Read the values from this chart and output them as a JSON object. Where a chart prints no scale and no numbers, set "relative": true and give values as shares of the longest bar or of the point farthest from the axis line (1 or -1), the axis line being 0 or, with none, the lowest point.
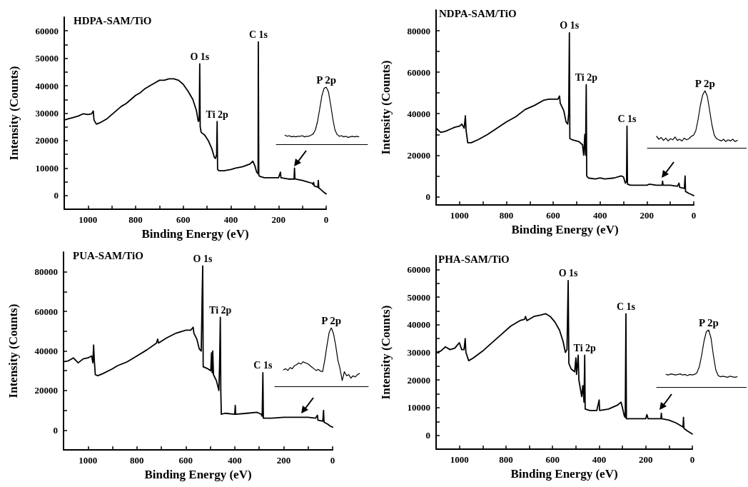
{
  "chart_data": [
    {
      "type": "line",
      "title": "HDPA-SAM/TiO",
      "xlabel": "Binding Energy (eV)",
      "ylabel": "Intensity (Counts)",
      "xlim": [
        1100,
        0
      ],
      "xticks": [
        1000,
        {
          "value": 900,
          "label": null
        },
        800,
        {
          "value": 700,
          "label": null
        },
        600,
        {
          "value": 500,
          "label": null
        },
        400,
        {
          "value": 300,
          "label": null
        },
        200,
        {
          "value": 100,
          "label": null
        },
        0
      ],
      "ylim": [
        -5000,
        65000
      ],
      "yticks": [
        0,
        {
          "value": 5000,
          "label": null
        },
        10000,
        {
          "value": 15000,
          "label": null
        },
        20000,
        {
          "value": 25000,
          "label": null
        },
        30000,
        {
          "value": 35000,
          "label": null
        },
        40000,
        {
          "value": 45000,
          "label": null
        },
        50000,
        {
          "value": 55000,
          "label": null
        },
        60000
      ],
      "annotations": [
        {
          "text": "O 1s",
          "x": 531,
          "y": 48000
        },
        {
          "text": "Ti 2p",
          "x": 458,
          "y": 27000
        },
        {
          "text": "C 1s",
          "x": 285,
          "y": 56000
        }
      ],
      "x": [
        1100,
        1080,
        1060,
        1040,
        1020,
        1000,
        985,
        978,
        975,
        965,
        950,
        920,
        900,
        880,
        860,
        840,
        820,
        800,
        780,
        760,
        740,
        720,
        700,
        680,
        660,
        640,
        620,
        600,
        580,
        560,
        545,
        537,
        533,
        531,
        529,
        525,
        510,
        495,
        480,
        470,
        465,
        460,
        458,
        456,
        450,
        430,
        400,
        380,
        350,
        320,
        308,
        300,
        292,
        286,
        285,
        283,
        280,
        260,
        220,
        200,
        192,
        190,
        160,
        135,
        133,
        131,
        100,
        80,
        60,
        55,
        53,
        50,
        35,
        33,
        31,
        20,
        10,
        0
      ],
      "series": [
        {
          "color": "#000000",
          "values": [
            27500,
            28000,
            28500,
            29000,
            29800,
            29500,
            29800,
            30800,
            27500,
            26000,
            26500,
            28000,
            29500,
            31000,
            32500,
            33500,
            35000,
            36500,
            37500,
            39000,
            40000,
            41000,
            42000,
            42000,
            42500,
            42500,
            42000,
            40500,
            38000,
            35000,
            31000,
            27000,
            27500,
            48000,
            25000,
            23000,
            22000,
            20000,
            17000,
            14000,
            13500,
            15000,
            27000,
            9500,
            9000,
            9000,
            9500,
            10000,
            10500,
            11500,
            12500,
            11000,
            8500,
            8000,
            56000,
            7500,
            7000,
            6500,
            6500,
            6500,
            8500,
            6500,
            6000,
            6000,
            10000,
            6000,
            5500,
            5000,
            4500,
            4000,
            4800,
            3500,
            3000,
            5500,
            2800,
            2000,
            1200,
            600
          ]
        }
      ]
    },
    {
      "type": "line",
      "relative": true,
      "tick_labels": false,
      "annotations": [
        "P 2p"
      ],
      "categories": [
        null,
        null,
        null,
        null,
        null,
        null,
        null,
        null,
        null,
        null,
        null,
        null,
        null,
        null,
        null,
        null,
        null,
        null,
        null,
        null,
        null,
        null,
        null,
        null,
        null,
        null,
        null,
        null,
        null,
        null,
        null,
        null,
        null,
        null,
        null,
        null,
        null,
        null,
        null,
        null,
        null,
        null,
        null
      ],
      "series": [
        {
          "color": "#000000",
          "values": [
            null,
            null,
            null,
            null,
            0.16,
            0.14,
            0.15,
            0.13,
            0.14,
            0.13,
            0.14,
            0.14,
            0.15,
            0.13,
            0.14,
            0.14,
            0.16,
            0.18,
            0.25,
            0.4,
            0.62,
            0.85,
            0.98,
            1,
            0.92,
            0.7,
            0.45,
            0.25,
            0.17,
            0.14,
            0.15,
            0.13,
            0.14,
            0.12,
            0.13,
            0.14,
            0.13,
            0.14,
            0.13,
            null,
            null,
            null,
            null
          ]
        }
      ]
    },
    {
      "type": "line",
      "title": "NDPA-SAM/TiO",
      "xlabel": "Binding Energy (eV)",
      "ylabel": "Intensity (Counts)",
      "xlim": [
        1100,
        0
      ],
      "xticks": [
        1000,
        {
          "value": 900,
          "label": null
        },
        800,
        {
          "value": 700,
          "label": null
        },
        600,
        {
          "value": 500,
          "label": null
        },
        400,
        {
          "value": 300,
          "label": null
        },
        200,
        {
          "value": 100,
          "label": null
        },
        0
      ],
      "ylim": [
        -4000,
        90000
      ],
      "yticks": [
        0,
        {
          "value": 10000,
          "label": null
        },
        20000,
        {
          "value": 30000,
          "label": null
        },
        40000,
        {
          "value": 50000,
          "label": null
        },
        60000,
        {
          "value": 70000,
          "label": null
        },
        80000
      ],
      "annotations": [
        {
          "text": "O 1s",
          "x": 531,
          "y": 79000
        },
        {
          "text": "Ti 2p",
          "x": 459,
          "y": 54000
        },
        {
          "text": "C 1s",
          "x": 285,
          "y": 34000
        }
      ],
      "x": [
        1100,
        1080,
        1060,
        1040,
        1020,
        1000,
        990,
        980,
        975,
        972,
        965,
        950,
        920,
        880,
        840,
        800,
        760,
        720,
        680,
        640,
        620,
        600,
        580,
        573,
        570,
        555,
        545,
        538,
        534,
        531,
        529,
        520,
        490,
        475,
        470,
        465,
        462,
        459,
        457,
        450,
        420,
        400,
        380,
        340,
        310,
        300,
        292,
        287,
        285,
        283,
        270,
        230,
        200,
        190,
        160,
        135,
        133,
        131,
        100,
        70,
        63,
        60,
        40,
        37,
        35,
        20,
        10,
        0
      ],
      "series": [
        {
          "color": "#000000",
          "values": [
            33000,
            31000,
            31500,
            32500,
            33500,
            34000,
            35000,
            33000,
            39000,
            32000,
            26000,
            26000,
            27500,
            30000,
            33000,
            36000,
            38500,
            42000,
            44000,
            46500,
            47000,
            47000,
            47000,
            48500,
            45000,
            41500,
            36000,
            35000,
            40000,
            79000,
            28000,
            27500,
            26500,
            25000,
            20000,
            30000,
            20000,
            54000,
            10000,
            9000,
            8500,
            9000,
            8500,
            9000,
            10000,
            9500,
            6500,
            7500,
            34000,
            6000,
            5500,
            5500,
            5500,
            6000,
            5500,
            5500,
            7500,
            5500,
            5500,
            5000,
            6500,
            4500,
            4000,
            10000,
            2500,
            1500,
            1000,
            500
          ]
        }
      ]
    },
    {
      "type": "line",
      "relative": true,
      "tick_labels": false,
      "annotations": [
        "P 2p"
      ],
      "categories": [
        null,
        null,
        null,
        null,
        null,
        null,
        null,
        null,
        null,
        null,
        null,
        null,
        null,
        null,
        null,
        null,
        null,
        null,
        null,
        null,
        null,
        null,
        null,
        null,
        null,
        null,
        null,
        null,
        null,
        null,
        null,
        null,
        null,
        null,
        null,
        null,
        null,
        null,
        null,
        null,
        null,
        null,
        null,
        null
      ],
      "series": [
        {
          "color": "#000000",
          "values": [
            null,
            null,
            null,
            null,
            0.2,
            0.15,
            0.18,
            0.13,
            0.17,
            0.12,
            0.16,
            0.14,
            0.19,
            0.13,
            0.15,
            0.12,
            0.17,
            0.14,
            0.16,
            0.2,
            0.22,
            0.3,
            0.5,
            0.75,
            0.93,
            1,
            0.9,
            0.65,
            0.4,
            0.22,
            0.16,
            0.14,
            0.12,
            0.15,
            0.11,
            0.14,
            0.12,
            0.15,
            0.11,
            0.13,
            null,
            null,
            null,
            null
          ]
        }
      ]
    },
    {
      "type": "line",
      "title": "PUA-SAM/TiO",
      "xlabel": "Binding Energy (eV)",
      "ylabel": "Intensity (Counts)",
      "xlim": [
        1100,
        0
      ],
      "xticks": [
        1000,
        {
          "value": 900,
          "label": null
        },
        800,
        {
          "value": 700,
          "label": null
        },
        600,
        {
          "value": 500,
          "label": null
        },
        400,
        {
          "value": 300,
          "label": null
        },
        200,
        {
          "value": 100,
          "label": null
        },
        0
      ],
      "ylim": [
        -10000,
        90000
      ],
      "yticks": [
        0,
        {
          "value": 10000,
          "label": null
        },
        20000,
        {
          "value": 30000,
          "label": null
        },
        40000,
        {
          "value": 50000,
          "label": null
        },
        60000,
        {
          "value": 70000,
          "label": null
        },
        80000
      ],
      "annotations": [
        {
          "text": "O 1s",
          "x": 531,
          "y": 83000
        },
        {
          "text": "Ti 2p",
          "x": 459,
          "y": 57000
        },
        {
          "text": "C 1s",
          "x": 285,
          "y": 29000
        }
      ],
      "x": [
        1100,
        1080,
        1060,
        1040,
        1020,
        1000,
        985,
        980,
        977,
        974,
        970,
        960,
        940,
        900,
        880,
        840,
        800,
        760,
        720,
        715,
        712,
        680,
        640,
        600,
        580,
        570,
        567,
        555,
        545,
        537,
        533,
        531,
        529,
        510,
        498,
        495,
        492,
        490,
        487,
        475,
        465,
        462,
        459,
        457,
        455,
        440,
        400,
        398,
        396,
        350,
        310,
        300,
        292,
        288,
        285,
        283,
        250,
        200,
        150,
        100,
        70,
        62,
        60,
        40,
        37,
        35,
        20,
        10,
        0
      ],
      "series": [
        {
          "color": "#000000",
          "values": [
            34500,
            35000,
            36500,
            34000,
            36000,
            36500,
            37500,
            34000,
            43000,
            35000,
            28000,
            27500,
            28500,
            31000,
            32500,
            34500,
            37500,
            40500,
            44000,
            46000,
            44000,
            46500,
            49000,
            50500,
            50500,
            52000,
            49000,
            46000,
            41000,
            40000,
            70000,
            83000,
            32000,
            31000,
            30000,
            39000,
            29000,
            40000,
            28000,
            25000,
            20000,
            33000,
            57000,
            20000,
            8000,
            8500,
            8000,
            12500,
            8000,
            8500,
            9000,
            8500,
            8000,
            7000,
            29000,
            6000,
            6000,
            6500,
            6500,
            6500,
            6000,
            7500,
            5000,
            4500,
            10000,
            4000,
            3000,
            2000,
            1500
          ]
        }
      ]
    },
    {
      "type": "line",
      "relative": true,
      "tick_labels": false,
      "annotations": [
        "P 2p"
      ],
      "categories": [
        null,
        null,
        null,
        null,
        null,
        null,
        null,
        null,
        null,
        null,
        null,
        null,
        null,
        null,
        null,
        null,
        null,
        null,
        null,
        null,
        null,
        null,
        null,
        null,
        null,
        null,
        null,
        null,
        null,
        null,
        null,
        null,
        null,
        null,
        null,
        null,
        null,
        null,
        null,
        null,
        null,
        null,
        null,
        null
      ],
      "series": [
        {
          "color": "#000000",
          "values": [
            null,
            null,
            null,
            null,
            0.28,
            0.3,
            0.27,
            0.32,
            0.3,
            0.35,
            0.37,
            0.4,
            0.38,
            0.42,
            0.4,
            0.39,
            0.36,
            0.33,
            0.3,
            0.27,
            0.29,
            0.26,
            0.25,
            0.45,
            0.7,
            0.92,
            1,
            0.9,
            0.7,
            0.45,
            0.3,
            0.1,
            0.25,
            0.18,
            0.2,
            0.14,
            0.18,
            0.16,
            0.2,
            0.22,
            null,
            null,
            null,
            null
          ]
        }
      ]
    },
    {
      "type": "line",
      "title": "PHA-SAM/TiO",
      "xlabel": "Binding Energy (eV)",
      "ylabel": "Intensity (Counts)",
      "xlim": [
        1100,
        0
      ],
      "xticks": [
        1000,
        {
          "value": 900,
          "label": null
        },
        800,
        {
          "value": 700,
          "label": null
        },
        600,
        {
          "value": 500,
          "label": null
        },
        400,
        {
          "value": 300,
          "label": null
        },
        200,
        {
          "value": 100,
          "label": null
        },
        0
      ],
      "ylim": [
        -5000,
        65000
      ],
      "yticks": [
        0,
        {
          "value": 5000,
          "label": null
        },
        10000,
        {
          "value": 15000,
          "label": null
        },
        20000,
        {
          "value": 25000,
          "label": null
        },
        30000,
        {
          "value": 35000,
          "label": null
        },
        40000,
        {
          "value": 45000,
          "label": null
        },
        50000,
        {
          "value": 55000,
          "label": null
        },
        60000
      ],
      "annotations": [
        {
          "text": "O 1s",
          "x": 533,
          "y": 56000
        },
        {
          "text": "Ti 2p",
          "x": 462,
          "y": 29000
        },
        {
          "text": "C 1s",
          "x": 285,
          "y": 44000
        }
      ],
      "x": [
        1100,
        1080,
        1060,
        1040,
        1020,
        1000,
        990,
        980,
        975,
        972,
        960,
        940,
        900,
        860,
        820,
        780,
        740,
        720,
        716,
        710,
        680,
        650,
        630,
        610,
        590,
        570,
        555,
        545,
        538,
        533,
        530,
        520,
        505,
        500,
        497,
        490,
        487,
        475,
        470,
        465,
        462,
        460,
        440,
        410,
        400,
        398,
        360,
        320,
        306,
        300,
        292,
        288,
        285,
        283,
        250,
        200,
        195,
        190,
        160,
        135,
        133,
        131,
        100,
        70,
        40,
        38,
        36,
        20,
        0
      ],
      "series": [
        {
          "color": "#000000",
          "values": [
            30000,
            30500,
            32000,
            31000,
            31500,
            33500,
            31000,
            31000,
            35000,
            30000,
            27000,
            28000,
            30500,
            33500,
            36500,
            39500,
            41500,
            42000,
            43000,
            41500,
            43000,
            43500,
            44000,
            43000,
            41000,
            38000,
            34000,
            30000,
            31000,
            56000,
            26000,
            24000,
            23000,
            28000,
            22000,
            29000,
            20000,
            14000,
            18000,
            12000,
            29000,
            9500,
            9000,
            9000,
            12800,
            9000,
            9500,
            11000,
            12000,
            10000,
            7000,
            6500,
            44000,
            6000,
            6000,
            6000,
            7500,
            6000,
            6000,
            6000,
            8000,
            6000,
            5500,
            4500,
            3000,
            6500,
            2500,
            1500,
            500
          ]
        }
      ]
    },
    {
      "type": "line",
      "relative": true,
      "tick_labels": false,
      "annotations": [
        "P 2p"
      ],
      "categories": [
        null,
        null,
        null,
        null,
        null,
        null,
        null,
        null,
        null,
        null,
        null,
        null,
        null,
        null,
        null,
        null,
        null,
        null,
        null,
        null,
        null,
        null,
        null,
        null,
        null,
        null,
        null,
        null,
        null,
        null,
        null,
        null,
        null,
        null,
        null,
        null,
        null,
        null,
        null
      ],
      "series": [
        {
          "color": "#000000",
          "values": [
            null,
            null,
            null,
            null,
            0.22,
            0.21,
            0.23,
            0.22,
            0.21,
            0.22,
            0.23,
            0.21,
            0.22,
            0.2,
            0.22,
            0.21,
            0.22,
            0.25,
            0.35,
            0.55,
            0.8,
            0.97,
            1,
            0.85,
            0.55,
            0.3,
            0.2,
            0.18,
            0.19,
            0.18,
            0.17,
            0.19,
            0.18,
            0.17,
            0.18,
            null,
            null,
            null,
            null
          ]
        }
      ]
    }
  ]
}
